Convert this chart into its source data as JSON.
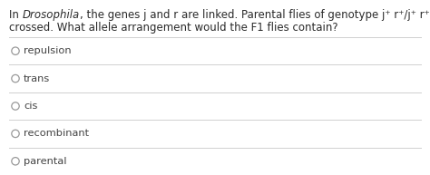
{
  "background_color": "#ffffff",
  "q_part1": "In ",
  "q_drosophila": "Drosophila",
  "q_part2": ", the genes j and r are linked. Parental flies of genotype j⁺ r⁺/j⁺ r⁺ and j r/ j r are",
  "q_line2": "crossed. What allele arrangement would the F1 flies contain?",
  "options": [
    "repulsion",
    "trans",
    "cis",
    "recombinant",
    "parental"
  ],
  "divider_color": "#d0d0d0",
  "text_color": "#2a2a2a",
  "option_text_color": "#444444",
  "circle_color": "#999999",
  "font_size_question": 8.5,
  "font_size_options": 8.2
}
